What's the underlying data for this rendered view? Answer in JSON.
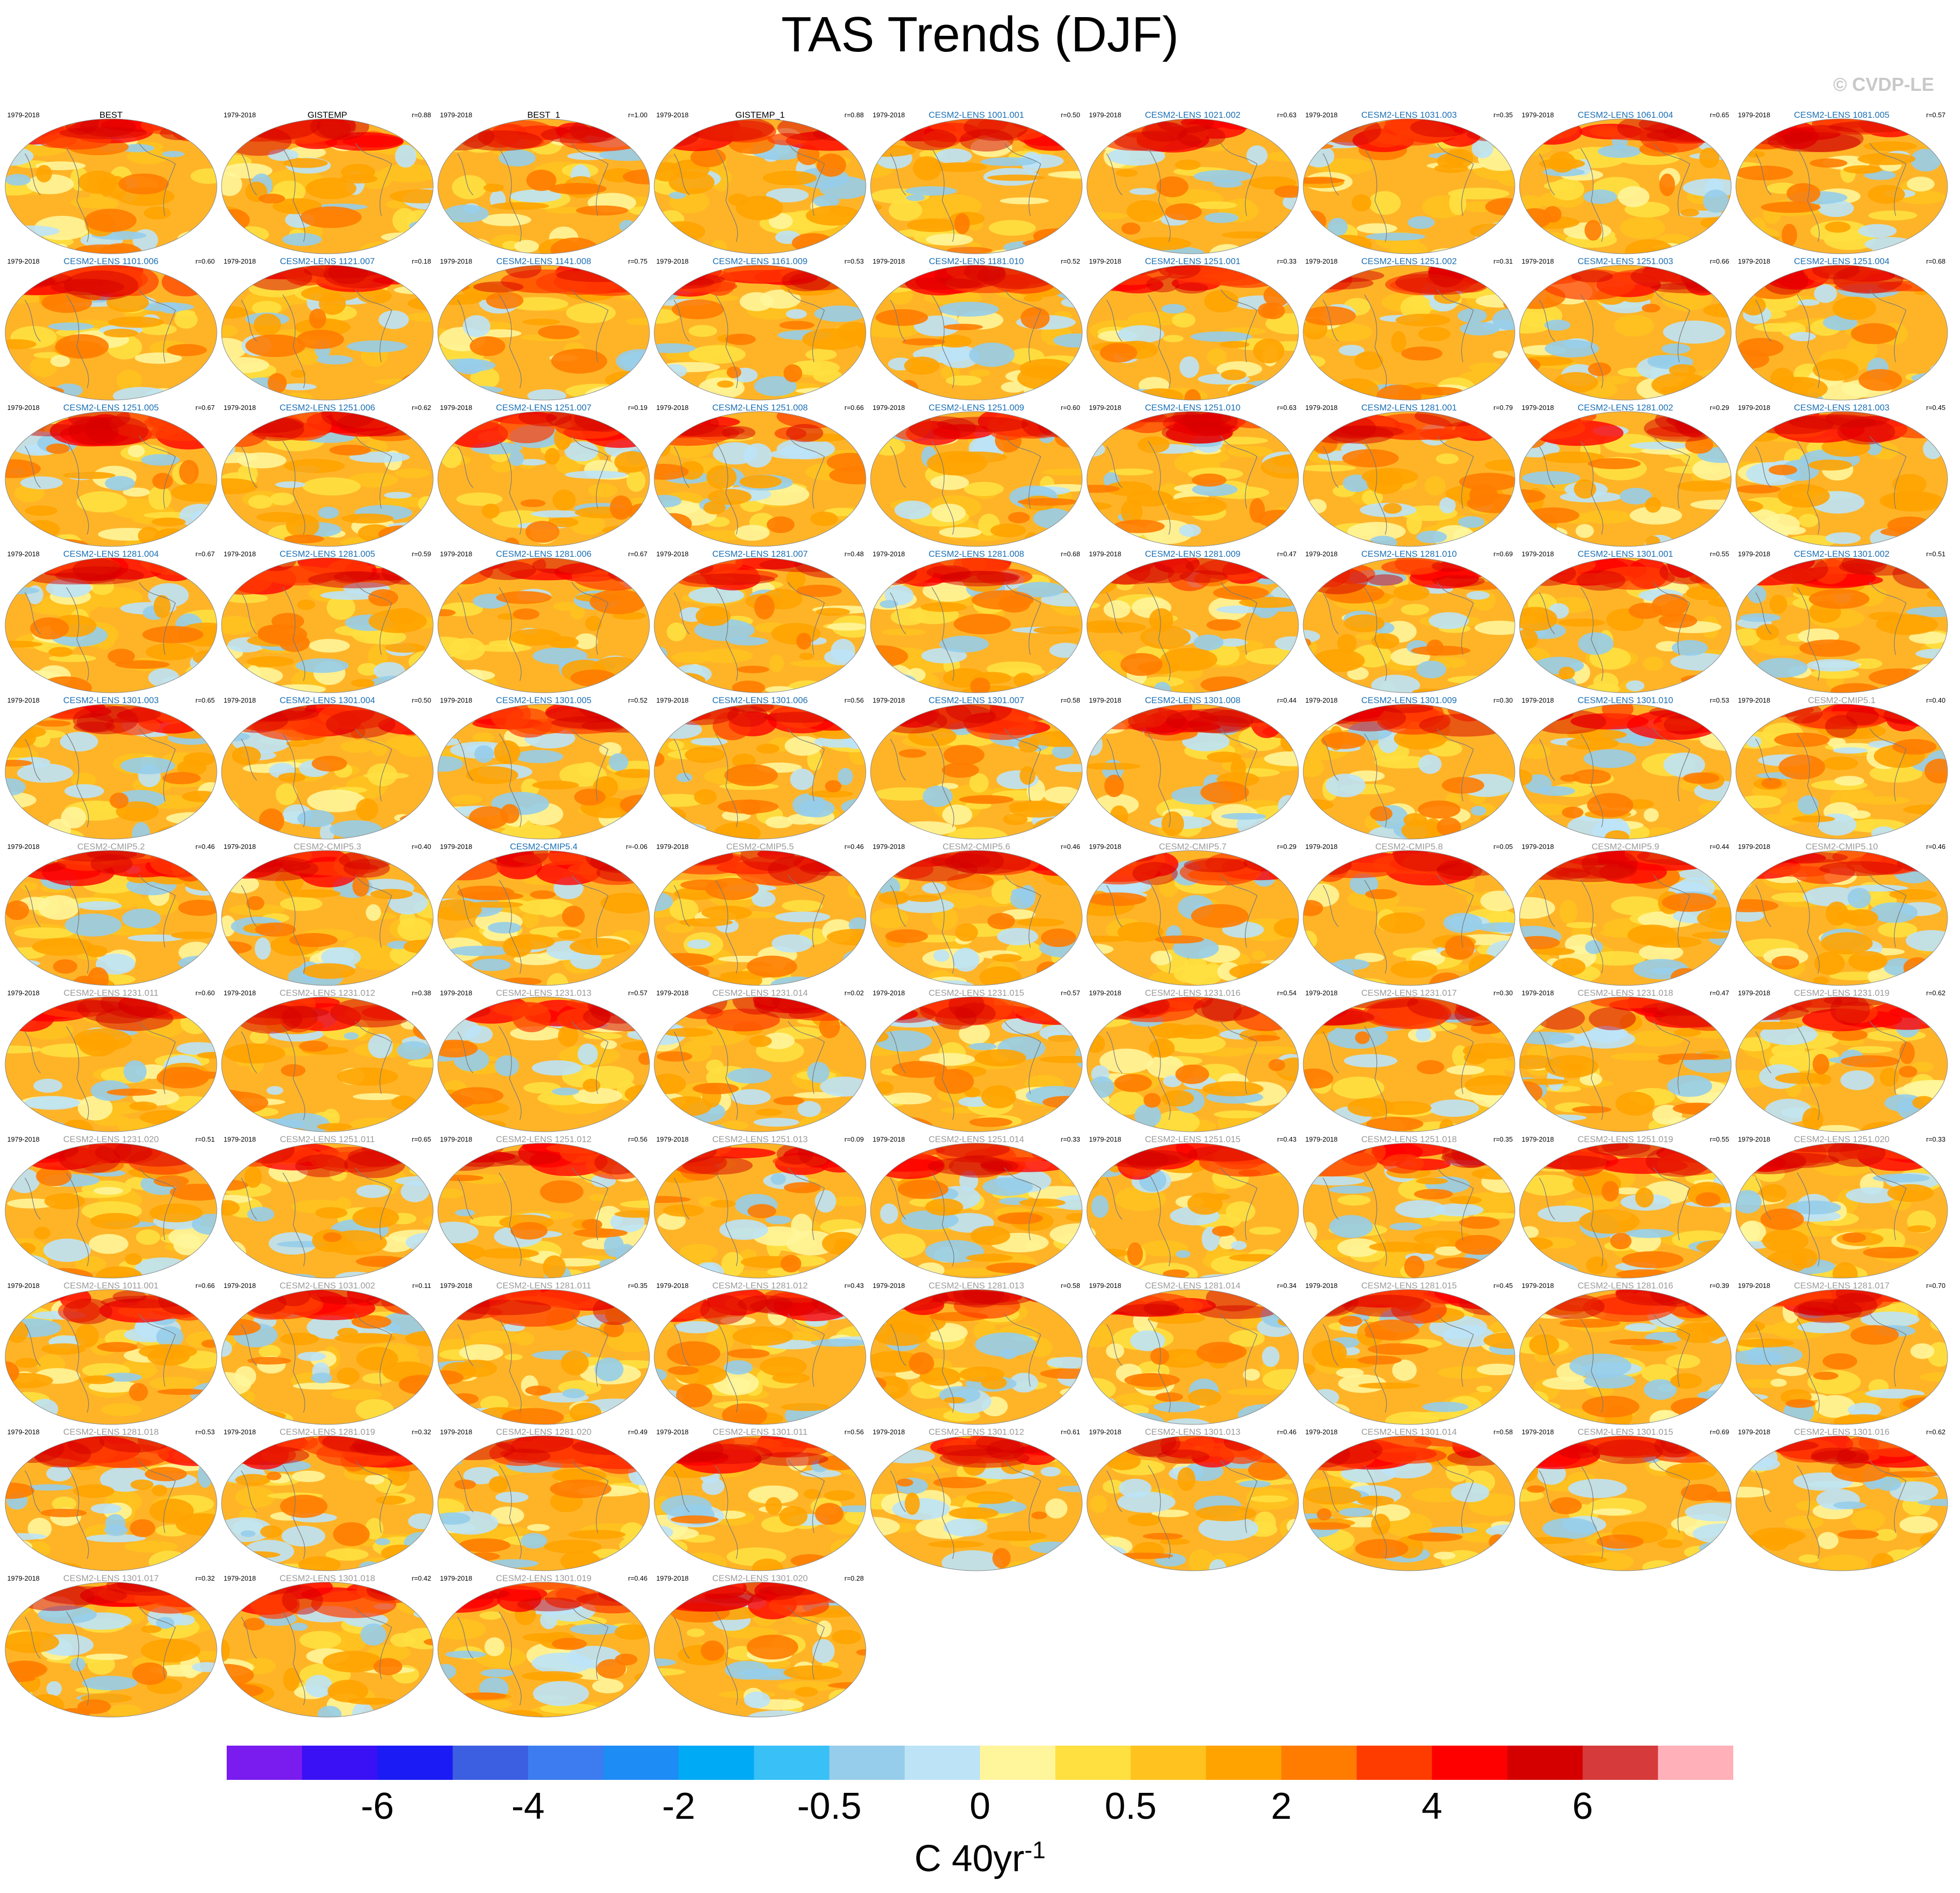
{
  "title": "TAS Trends (DJF)",
  "watermark": "© CVDP-LE",
  "chart_data": {
    "type": "map-panels",
    "variable": "TAS",
    "season": "DJF",
    "period": "1979-2018",
    "units": "C 40yr",
    "units_exp": "-1",
    "colorbar": {
      "colors": [
        "#7a1cf0",
        "#3a10f5",
        "#1b1bf5",
        "#3c5ee0",
        "#3c7cf0",
        "#1e8cf5",
        "#00aaf5",
        "#38c0f7",
        "#96cdea",
        "#bde3f7",
        "#fff59a",
        "#ffe040",
        "#ffc21e",
        "#ffa300",
        "#ff7c00",
        "#ff3c00",
        "#ff0000",
        "#d40000",
        "#d63a3a",
        "#ffb0b8"
      ],
      "tick_labels": [
        "-6",
        "-4",
        "-2",
        "-0.5",
        "0",
        "0.5",
        "2",
        "4",
        "6"
      ]
    },
    "panels": [
      {
        "name": "BEST",
        "r": "",
        "type": "obs"
      },
      {
        "name": "GISTEMP",
        "r": "r=0.88",
        "type": "obs"
      },
      {
        "name": "BEST_1",
        "r": "r=1.00",
        "type": "obs"
      },
      {
        "name": "GISTEMP_1",
        "r": "r=0.88",
        "type": "obs"
      },
      {
        "name": "CESM2-LENS 1001.001",
        "r": "r=0.50",
        "type": "lens"
      },
      {
        "name": "CESM2-LENS 1021.002",
        "r": "r=0.63",
        "type": "lens"
      },
      {
        "name": "CESM2-LENS 1031.003",
        "r": "r=0.35",
        "type": "lens"
      },
      {
        "name": "CESM2-LENS 1061.004",
        "r": "r=0.65",
        "type": "lens"
      },
      {
        "name": "CESM2-LENS 1081.005",
        "r": "r=0.57",
        "type": "lens"
      },
      {
        "name": "CESM2-LENS 1101.006",
        "r": "r=0.60",
        "type": "lens"
      },
      {
        "name": "CESM2-LENS 1121.007",
        "r": "r=0.18",
        "type": "lens"
      },
      {
        "name": "CESM2-LENS 1141.008",
        "r": "r=0.75",
        "type": "lens"
      },
      {
        "name": "CESM2-LENS 1161.009",
        "r": "r=0.53",
        "type": "lens"
      },
      {
        "name": "CESM2-LENS 1181.010",
        "r": "r=0.52",
        "type": "lens"
      },
      {
        "name": "CESM2-LENS 1251.001",
        "r": "r=0.33",
        "type": "lens"
      },
      {
        "name": "CESM2-LENS 1251.002",
        "r": "r=0.31",
        "type": "lens"
      },
      {
        "name": "CESM2-LENS 1251.003",
        "r": "r=0.66",
        "type": "lens"
      },
      {
        "name": "CESM2-LENS 1251.004",
        "r": "r=0.68",
        "type": "lens"
      },
      {
        "name": "CESM2-LENS 1251.005",
        "r": "r=0.67",
        "type": "lens"
      },
      {
        "name": "CESM2-LENS 1251.006",
        "r": "r=0.62",
        "type": "lens"
      },
      {
        "name": "CESM2-LENS 1251.007",
        "r": "r=0.19",
        "type": "lens"
      },
      {
        "name": "CESM2-LENS 1251.008",
        "r": "r=0.66",
        "type": "lens"
      },
      {
        "name": "CESM2-LENS 1251.009",
        "r": "r=0.60",
        "type": "lens"
      },
      {
        "name": "CESM2-LENS 1251.010",
        "r": "r=0.63",
        "type": "lens"
      },
      {
        "name": "CESM2-LENS 1281.001",
        "r": "r=0.79",
        "type": "lens"
      },
      {
        "name": "CESM2-LENS 1281.002",
        "r": "r=0.29",
        "type": "lens"
      },
      {
        "name": "CESM2-LENS 1281.003",
        "r": "r=0.45",
        "type": "lens"
      },
      {
        "name": "CESM2-LENS 1281.004",
        "r": "r=0.67",
        "type": "lens"
      },
      {
        "name": "CESM2-LENS 1281.005",
        "r": "r=0.59",
        "type": "lens"
      },
      {
        "name": "CESM2-LENS 1281.006",
        "r": "r=0.67",
        "type": "lens"
      },
      {
        "name": "CESM2-LENS 1281.007",
        "r": "r=0.48",
        "type": "lens"
      },
      {
        "name": "CESM2-LENS 1281.008",
        "r": "r=0.68",
        "type": "lens"
      },
      {
        "name": "CESM2-LENS 1281.009",
        "r": "r=0.47",
        "type": "lens"
      },
      {
        "name": "CESM2-LENS 1281.010",
        "r": "r=0.69",
        "type": "lens"
      },
      {
        "name": "CESM2-LENS 1301.001",
        "r": "r=0.55",
        "type": "lens"
      },
      {
        "name": "CESM2-LENS 1301.002",
        "r": "r=0.51",
        "type": "lens"
      },
      {
        "name": "CESM2-LENS 1301.003",
        "r": "r=0.65",
        "type": "lens"
      },
      {
        "name": "CESM2-LENS 1301.004",
        "r": "r=0.50",
        "type": "lens"
      },
      {
        "name": "CESM2-LENS 1301.005",
        "r": "r=0.52",
        "type": "lens"
      },
      {
        "name": "CESM2-LENS 1301.006",
        "r": "r=0.56",
        "type": "lens"
      },
      {
        "name": "CESM2-LENS 1301.007",
        "r": "r=0.58",
        "type": "lens"
      },
      {
        "name": "CESM2-LENS 1301.008",
        "r": "r=0.44",
        "type": "lens"
      },
      {
        "name": "CESM2-LENS 1301.009",
        "r": "r=0.30",
        "type": "lens"
      },
      {
        "name": "CESM2-LENS 1301.010",
        "r": "r=0.53",
        "type": "lens"
      },
      {
        "name": "CESM2-CMIP5.1",
        "r": "r=0.40",
        "type": "other"
      },
      {
        "name": "CESM2-CMIP5.2",
        "r": "r=0.46",
        "type": "other"
      },
      {
        "name": "CESM2-CMIP5.3",
        "r": "r=0.40",
        "type": "other"
      },
      {
        "name": "CESM2-CMIP5.4",
        "r": "r=-0.06",
        "type": "lens"
      },
      {
        "name": "CESM2-CMIP5.5",
        "r": "r=0.46",
        "type": "other"
      },
      {
        "name": "CESM2-CMIP5.6",
        "r": "r=0.46",
        "type": "other"
      },
      {
        "name": "CESM2-CMIP5.7",
        "r": "r=0.29",
        "type": "other"
      },
      {
        "name": "CESM2-CMIP5.8",
        "r": "r=0.05",
        "type": "other"
      },
      {
        "name": "CESM2-CMIP5.9",
        "r": "r=0.44",
        "type": "other"
      },
      {
        "name": "CESM2-CMIP5.10",
        "r": "r=0.46",
        "type": "other"
      },
      {
        "name": "CESM2-LENS 1231.011",
        "r": "r=0.60",
        "type": "other"
      },
      {
        "name": "CESM2-LENS 1231.012",
        "r": "r=0.38",
        "type": "other"
      },
      {
        "name": "CESM2-LENS 1231.013",
        "r": "r=0.57",
        "type": "other"
      },
      {
        "name": "CESM2-LENS 1231.014",
        "r": "r=0.02",
        "type": "other"
      },
      {
        "name": "CESM2-LENS 1231.015",
        "r": "r=0.57",
        "type": "other"
      },
      {
        "name": "CESM2-LENS 1231.016",
        "r": "r=0.54",
        "type": "other"
      },
      {
        "name": "CESM2-LENS 1231.017",
        "r": "r=0.30",
        "type": "other"
      },
      {
        "name": "CESM2-LENS 1231.018",
        "r": "r=0.47",
        "type": "other"
      },
      {
        "name": "CESM2-LENS 1231.019",
        "r": "r=0.62",
        "type": "other"
      },
      {
        "name": "CESM2-LENS 1231.020",
        "r": "r=0.51",
        "type": "other"
      },
      {
        "name": "CESM2-LENS 1251.011",
        "r": "r=0.65",
        "type": "other"
      },
      {
        "name": "CESM2-LENS 1251.012",
        "r": "r=0.56",
        "type": "other"
      },
      {
        "name": "CESM2-LENS 1251.013",
        "r": "r=0.09",
        "type": "other"
      },
      {
        "name": "CESM2-LENS 1251.014",
        "r": "r=0.33",
        "type": "other"
      },
      {
        "name": "CESM2-LENS 1251.015",
        "r": "r=0.43",
        "type": "other"
      },
      {
        "name": "CESM2-LENS 1251.018",
        "r": "r=0.35",
        "type": "other"
      },
      {
        "name": "CESM2-LENS 1251.019",
        "r": "r=0.55",
        "type": "other"
      },
      {
        "name": "CESM2-LENS 1251.020",
        "r": "r=0.33",
        "type": "other"
      },
      {
        "name": "CESM2-LENS 1011.001",
        "r": "r=0.66",
        "type": "other"
      },
      {
        "name": "CESM2-LENS 1031.002",
        "r": "r=0.11",
        "type": "other"
      },
      {
        "name": "CESM2-LENS 1281.011",
        "r": "r=0.35",
        "type": "other"
      },
      {
        "name": "CESM2-LENS 1281.012",
        "r": "r=0.43",
        "type": "other"
      },
      {
        "name": "CESM2-LENS 1281.013",
        "r": "r=0.58",
        "type": "other"
      },
      {
        "name": "CESM2-LENS 1281.014",
        "r": "r=0.34",
        "type": "other"
      },
      {
        "name": "CESM2-LENS 1281.015",
        "r": "r=0.45",
        "type": "other"
      },
      {
        "name": "CESM2-LENS 1281.016",
        "r": "r=0.39",
        "type": "other"
      },
      {
        "name": "CESM2-LENS 1281.017",
        "r": "r=0.70",
        "type": "other"
      },
      {
        "name": "CESM2-LENS 1281.018",
        "r": "r=0.53",
        "type": "other"
      },
      {
        "name": "CESM2-LENS 1281.019",
        "r": "r=0.32",
        "type": "other"
      },
      {
        "name": "CESM2-LENS 1281.020",
        "r": "r=0.49",
        "type": "other"
      },
      {
        "name": "CESM2-LENS 1301.011",
        "r": "r=0.56",
        "type": "other"
      },
      {
        "name": "CESM2-LENS 1301.012",
        "r": "r=0.61",
        "type": "other"
      },
      {
        "name": "CESM2-LENS 1301.013",
        "r": "r=0.46",
        "type": "other"
      },
      {
        "name": "CESM2-LENS 1301.014",
        "r": "r=0.58",
        "type": "other"
      },
      {
        "name": "CESM2-LENS 1301.015",
        "r": "r=0.69",
        "type": "other"
      },
      {
        "name": "CESM2-LENS 1301.016",
        "r": "r=0.62",
        "type": "other"
      },
      {
        "name": "CESM2-LENS 1301.017",
        "r": "r=0.32",
        "type": "other"
      },
      {
        "name": "CESM2-LENS 1301.018",
        "r": "r=0.42",
        "type": "other"
      },
      {
        "name": "CESM2-LENS 1301.019",
        "r": "r=0.46",
        "type": "other"
      },
      {
        "name": "CESM2-LENS 1301.020",
        "r": "r=0.28",
        "type": "other"
      }
    ]
  },
  "name_colors": {
    "obs": "#000000",
    "lens": "#1a6fb4",
    "other": "#9a9a9a"
  }
}
